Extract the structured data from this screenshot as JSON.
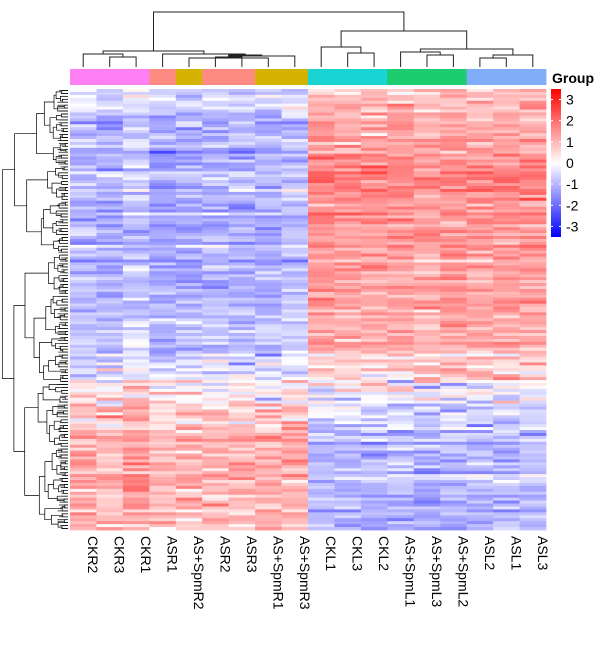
{
  "chart_data": {
    "type": "heatmap",
    "columns": [
      "CKR2",
      "CKR3",
      "CKR1",
      "ASR1",
      "AS+SpmR2",
      "ASR2",
      "ASR3",
      "AS+SpmR1",
      "AS+SpmR3",
      "CKL1",
      "CKL3",
      "CKL2",
      "AS+SpmL1",
      "AS+SpmL3",
      "AS+SpmL2",
      "ASL2",
      "ASL1",
      "ASL3"
    ],
    "column_colors": [
      "#ff7ff5",
      "#ff7ff5",
      "#ff7ff5",
      "#fd8b81",
      "#d3b202",
      "#fd8b81",
      "#fd8b81",
      "#d3b202",
      "#d3b202",
      "#1ad4d4",
      "#1ad4d4",
      "#1ad4d4",
      "#1ccc6e",
      "#1ccc6e",
      "#1ccc6e",
      "#7fadf7",
      "#7fadf7",
      "#7fadf7"
    ],
    "legend": {
      "title": "Group",
      "ticks": [
        3,
        2,
        1,
        0,
        -1,
        -2,
        -3
      ],
      "range": [
        -3.5,
        3.5
      ],
      "colors": [
        "#0000ff",
        "#ffffff",
        "#ff0000"
      ]
    },
    "row_blocks": [
      {
        "span": 0.05,
        "left": -0.6,
        "right": 0.9,
        "sd": 0.35
      },
      {
        "span": 0.08,
        "left": -1.1,
        "right": 1.2,
        "sd": 0.35
      },
      {
        "span": 0.12,
        "left": -1.0,
        "right": 1.6,
        "sd": 0.35
      },
      {
        "span": 0.1,
        "left": -1.2,
        "right": 1.4,
        "sd": 0.3
      },
      {
        "span": 0.15,
        "left": -1.1,
        "right": 1.3,
        "sd": 0.3
      },
      {
        "span": 0.1,
        "left": -0.9,
        "right": 1.1,
        "sd": 0.3
      },
      {
        "span": 0.06,
        "left": -0.5,
        "right": 0.6,
        "sd": 0.55
      },
      {
        "span": 0.05,
        "left": 0.2,
        "right": 0.0,
        "sd": 0.6
      },
      {
        "span": 0.06,
        "left": 0.6,
        "right": -0.6,
        "sd": 0.5
      },
      {
        "span": 0.1,
        "left": 1.0,
        "right": -1.0,
        "sd": 0.35
      },
      {
        "span": 0.08,
        "left": 0.9,
        "right": -0.9,
        "sd": 0.35
      },
      {
        "span": 0.05,
        "left": 0.8,
        "right": -1.1,
        "sd": 0.35
      }
    ]
  }
}
